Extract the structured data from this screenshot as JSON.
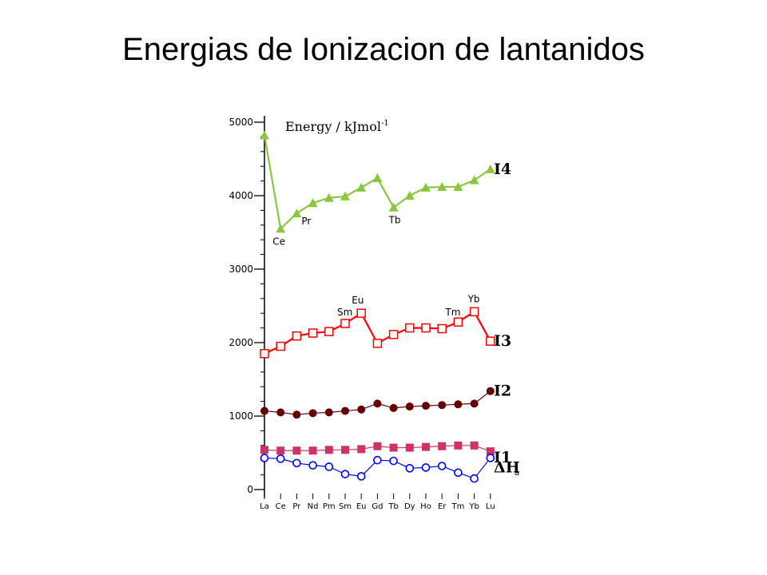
{
  "slide": {
    "title": "Energias de Ionizacion de lantanidos"
  },
  "chart_data": {
    "type": "line",
    "unit_label": "Energy / kJmol",
    "unit_exponent": "-1",
    "categories": [
      "La",
      "Ce",
      "Pr",
      "Nd",
      "Pm",
      "Sm",
      "Eu",
      "Gd",
      "Tb",
      "Dy",
      "Ho",
      "Er",
      "Tm",
      "Yb",
      "Lu"
    ],
    "ylim": [
      0,
      5000
    ],
    "yticks": [
      0,
      1000,
      2000,
      3000,
      4000,
      5000
    ],
    "grid": false,
    "legend": "series labels at right end of each line",
    "series": [
      {
        "name": "I4",
        "color": "#8cc63f",
        "marker": "triangle-filled",
        "values": [
          4820,
          3550,
          3760,
          3900,
          3970,
          3990,
          4110,
          4240,
          3840,
          4000,
          4110,
          4120,
          4120,
          4210,
          4360
        ]
      },
      {
        "name": "I3",
        "color": "#ff0000",
        "marker": "square-open",
        "values": [
          1850,
          1950,
          2090,
          2130,
          2150,
          2260,
          2400,
          1990,
          2110,
          2200,
          2200,
          2190,
          2280,
          2420,
          2020
        ]
      },
      {
        "name": "I2",
        "color": "#660000",
        "marker": "circle-filled",
        "values": [
          1070,
          1050,
          1020,
          1040,
          1050,
          1070,
          1090,
          1170,
          1110,
          1130,
          1140,
          1150,
          1160,
          1170,
          1340
        ]
      },
      {
        "name": "I1",
        "color": "#cc3366",
        "marker": "square-filled",
        "values": [
          540,
          530,
          530,
          530,
          540,
          540,
          550,
          590,
          570,
          570,
          580,
          590,
          600,
          600,
          520
        ]
      },
      {
        "name": "ΔH",
        "color": "#0000ff",
        "marker": "circle-open",
        "values": [
          430,
          420,
          360,
          330,
          310,
          210,
          180,
          400,
          390,
          290,
          300,
          320,
          230,
          150,
          430
        ]
      }
    ],
    "annotations": [
      {
        "text": "Ce",
        "series": "I4",
        "category": "Ce"
      },
      {
        "text": "Pr",
        "series": "I4",
        "category": "Pr"
      },
      {
        "text": "Tb",
        "series": "I4",
        "category": "Tb"
      },
      {
        "text": "Sm",
        "series": "I3",
        "category": "Sm"
      },
      {
        "text": "Eu",
        "series": "I3",
        "category": "Eu"
      },
      {
        "text": "Tm",
        "series": "I3",
        "category": "Tm"
      },
      {
        "text": "Yb",
        "series": "I3",
        "category": "Yb"
      }
    ],
    "footnote": "a"
  }
}
